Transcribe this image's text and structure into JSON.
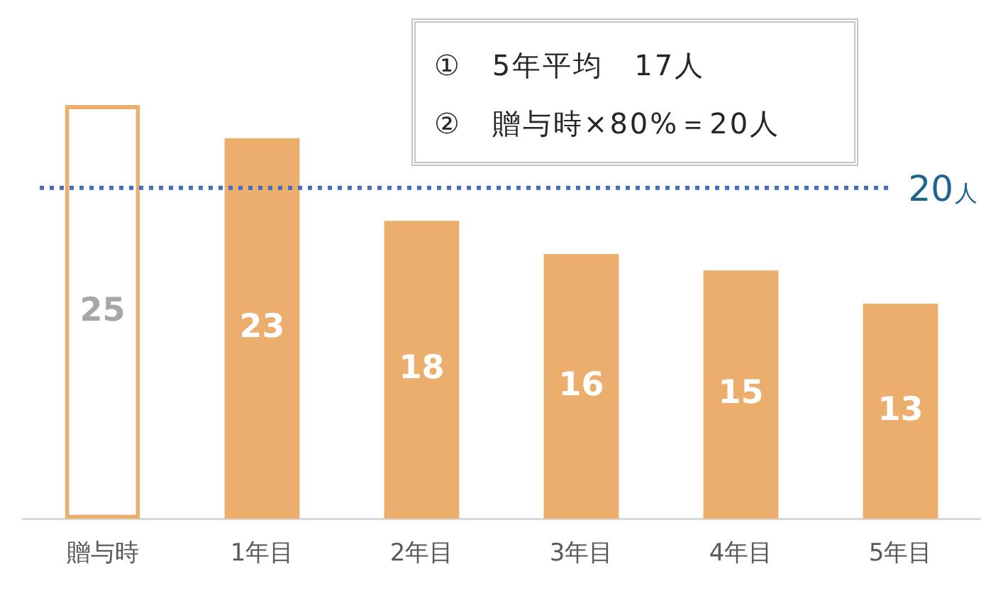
{
  "chart_data": {
    "type": "bar",
    "categories": [
      "贈与時",
      "1年目",
      "2年目",
      "3年目",
      "4年目",
      "5年目"
    ],
    "values": [
      25,
      23,
      18,
      16,
      15,
      13
    ],
    "colors": [
      "#ecae6c",
      "#ecae6c",
      "#ecae6c",
      "#ecae6c",
      "#ecae6c",
      "#ecae6c"
    ],
    "data_labels": true,
    "ref_lines": [
      {
        "axis": "y",
        "value": 20,
        "label": "20人",
        "color": "#4a6cc0",
        "line_style": "dotted"
      }
    ],
    "annotations": [
      "①　5年平均　17人",
      "②　贈与時×80%＝20人"
    ]
  }
}
